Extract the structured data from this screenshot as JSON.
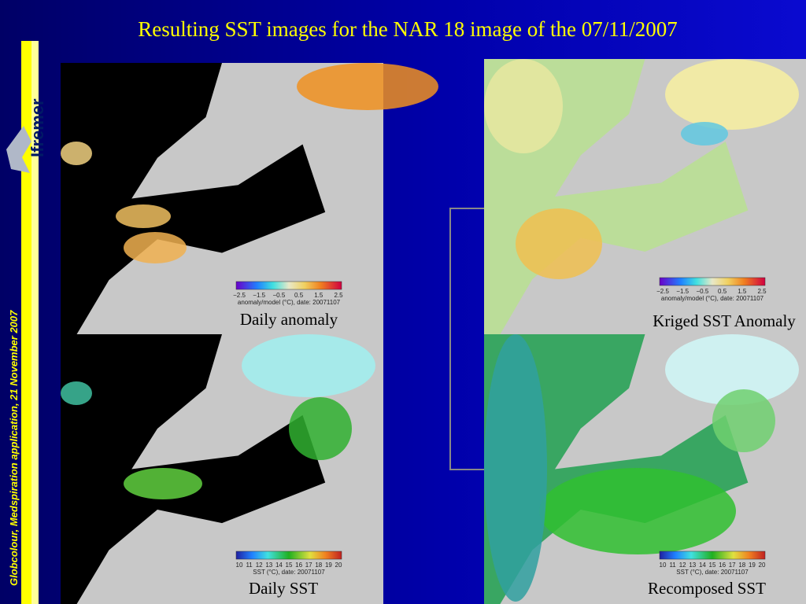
{
  "title": "Resulting SST images for the NAR 18 image of the 07/11/2007",
  "sidebar": {
    "logo": "Ifremer",
    "footer": "Globcolour, Medspiration application, 21 November 2007"
  },
  "panels": [
    {
      "caption": "Daily anomaly",
      "colorbar": {
        "ticks": [
          "−2.5",
          "−1.5",
          "−0.5",
          "0.5",
          "1.5",
          "2.5"
        ],
        "label": "anomaly/model (°C), date: 20071107"
      }
    },
    {
      "caption": "Kriged SST Anomaly",
      "colorbar": {
        "ticks": [
          "−2.5",
          "−1.5",
          "−0.5",
          "0.5",
          "1.5",
          "2.5"
        ],
        "label": "anomaly/model (°C), date: 20071107"
      }
    },
    {
      "caption": "Daily SST",
      "colorbar": {
        "ticks": [
          "10",
          "11",
          "12",
          "13",
          "14",
          "15",
          "16",
          "17",
          "18",
          "19",
          "20"
        ],
        "label": "SST (°C), date: 20071107"
      }
    },
    {
      "caption": "Recomposed SST",
      "colorbar": {
        "ticks": [
          "10",
          "11",
          "12",
          "13",
          "14",
          "15",
          "16",
          "17",
          "18",
          "19",
          "20"
        ],
        "label": "SST (°C), date: 20071107"
      }
    }
  ]
}
